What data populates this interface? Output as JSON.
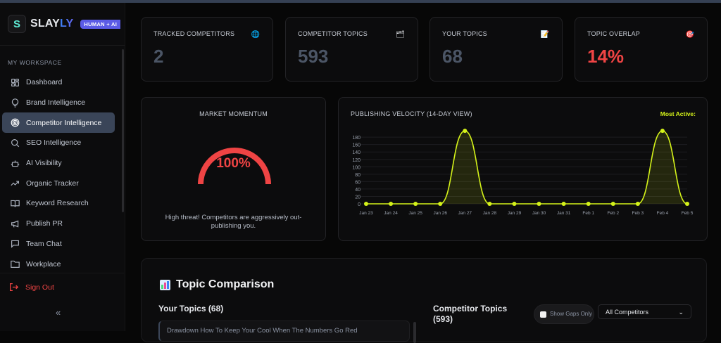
{
  "brand": {
    "logo_letter": "S",
    "name_part1": "SLAY",
    "name_part2": "LY",
    "badge": "HUMAN + AI"
  },
  "sidebar": {
    "section_label": "MY WORKSPACE",
    "items": [
      {
        "label": "Dashboard",
        "icon": "grid-icon"
      },
      {
        "label": "Brand Intelligence",
        "icon": "lightbulb-icon"
      },
      {
        "label": "Competitor Intelligence",
        "icon": "target-icon",
        "active": true
      },
      {
        "label": "SEO Intelligence",
        "icon": "search-icon"
      },
      {
        "label": "AI Visibility",
        "icon": "bot-icon"
      },
      {
        "label": "Organic Tracker",
        "icon": "trending-up-icon"
      },
      {
        "label": "Keyword Research",
        "icon": "book-icon"
      },
      {
        "label": "Publish PR",
        "icon": "megaphone-icon"
      },
      {
        "label": "Team Chat",
        "icon": "chat-icon"
      },
      {
        "label": "Workplace",
        "icon": "folder-icon"
      }
    ],
    "sign_out": "Sign Out",
    "collapse": "«"
  },
  "stats": [
    {
      "label": "TRACKED COMPETITORS",
      "value": "2",
      "icon": "🌐"
    },
    {
      "label": "COMPETITOR TOPICS",
      "value": "593",
      "icon": "🗂"
    },
    {
      "label": "YOUR TOPICS",
      "value": "68",
      "icon": "📝"
    },
    {
      "label": "TOPIC OVERLAP",
      "value": "14%",
      "icon": "🎯",
      "color": "#ef4444"
    }
  ],
  "market_momentum": {
    "title": "MARKET MOMENTUM",
    "value": "100%",
    "message": "High threat! Competitors are aggressively out-publishing you.",
    "color": "#ef4444"
  },
  "publishing_velocity": {
    "title": "PUBLISHING VELOCITY (14-DAY VIEW)",
    "most_active_label": "Most Active:",
    "line_color": "#d4f21a"
  },
  "chart_data": {
    "type": "line",
    "title": "PUBLISHING VELOCITY (14-DAY VIEW)",
    "categories": [
      "Jan 23",
      "Jan 24",
      "Jan 25",
      "Jan 26",
      "Jan 27",
      "Jan 28",
      "Jan 29",
      "Jan 30",
      "Jan 31",
      "Feb 1",
      "Feb 2",
      "Feb 3",
      "Feb 4",
      "Feb 5"
    ],
    "values": [
      0,
      0,
      0,
      0,
      197,
      0,
      0,
      0,
      0,
      0,
      0,
      0,
      197,
      0
    ],
    "yticks": [
      0,
      20,
      40,
      60,
      80,
      100,
      120,
      140,
      160,
      180
    ],
    "ylim": [
      0,
      200
    ],
    "grid": true,
    "fill": true,
    "xlabel": "",
    "ylabel": ""
  },
  "topic_comparison": {
    "title": "Topic Comparison",
    "your_topics_heading": "Your Topics (68)",
    "first_topic": "Drawdown How To Keep Your Cool When The Numbers Go Red",
    "competitor_heading": "Competitor Topics (593)",
    "show_gaps_label": "Show Gaps Only",
    "competitor_select": "All Competitors"
  }
}
